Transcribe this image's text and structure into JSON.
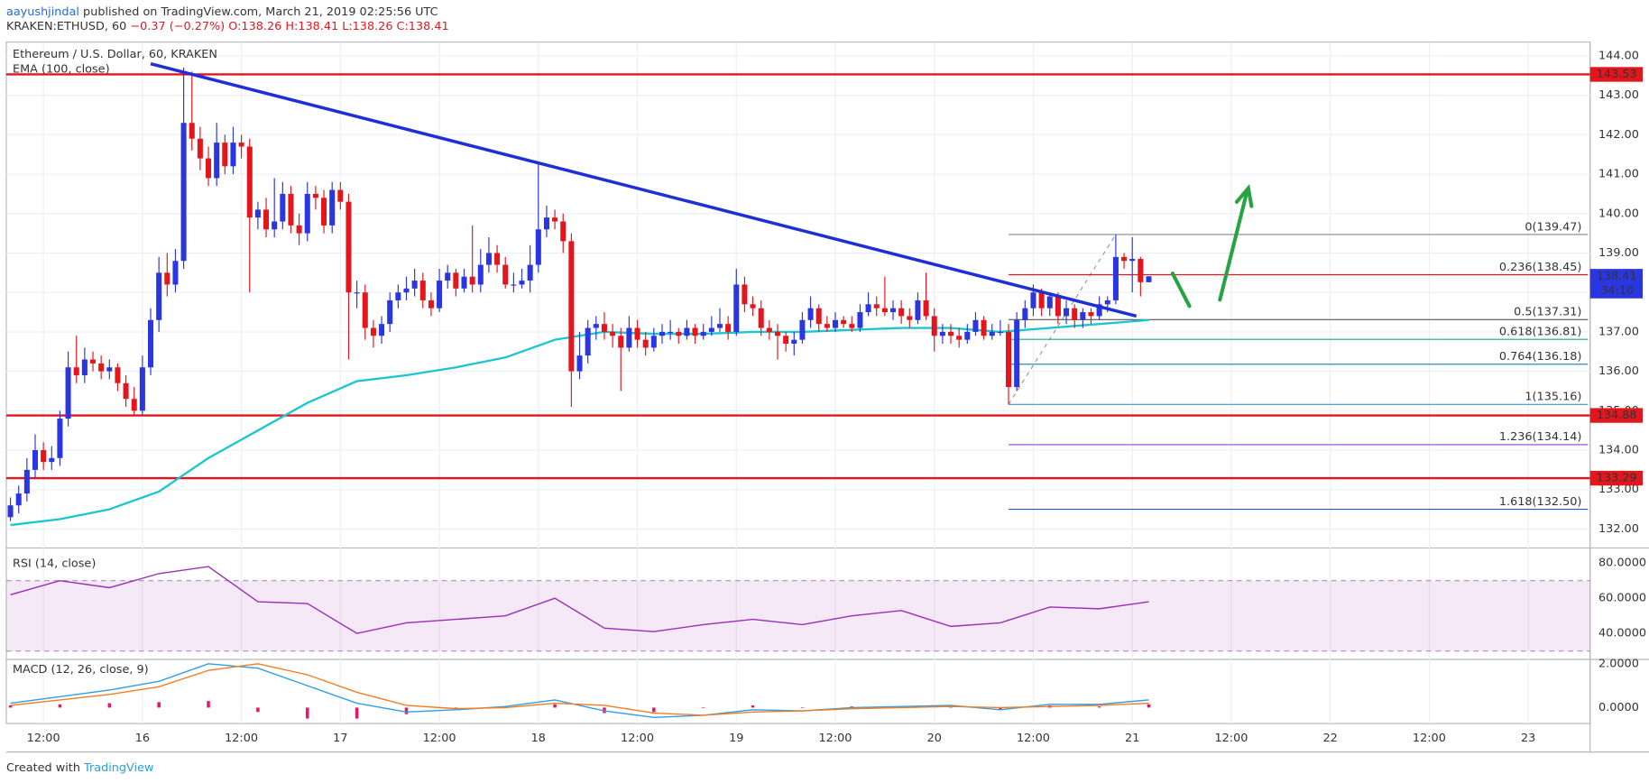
{
  "chart_data": {
    "type": "candlestick",
    "publisher": "aayushjindal",
    "published": "published on TradingView.com, March 21, 2019 02:25:56 UTC",
    "symbol": "KRAKEN:ETHUSD, 60",
    "change": "−0.37 (−0.27%)",
    "ohlc": "O:138.26 H:138.41 L:138.26 C:138.41",
    "title": "Ethereum / U.S. Dollar, 60, KRAKEN",
    "ema_label": "EMA (100, close)",
    "rsi_label": "RSI (14, close)",
    "macd_label": "MACD (12, 26, close, 9)",
    "footer": "Created with",
    "footer_brand": "TradingView",
    "up_color": "#2a36e0",
    "down_color": "#e3161d",
    "ema_color": "#1cc6d0",
    "grid": true,
    "xlim": [
      -0.5,
      191.5
    ],
    "xticks": [
      {
        "value": 4,
        "label": "12:00"
      },
      {
        "value": 16,
        "label": "16"
      },
      {
        "value": 28,
        "label": "12:00"
      },
      {
        "value": 40,
        "label": "17"
      },
      {
        "value": 52,
        "label": "12:00"
      },
      {
        "value": 64,
        "label": "18"
      },
      {
        "value": 76,
        "label": "12:00"
      },
      {
        "value": 88,
        "label": "19"
      },
      {
        "value": 100,
        "label": "12:00"
      },
      {
        "value": 112,
        "label": "20"
      },
      {
        "value": 124,
        "label": "12:00"
      },
      {
        "value": 136,
        "label": "21"
      },
      {
        "value": 148,
        "label": "12:00"
      },
      {
        "value": 160,
        "label": "22"
      },
      {
        "value": 172,
        "label": "12:00"
      },
      {
        "value": 184,
        "label": "23"
      }
    ],
    "ylim": [
      131.52,
      144.35
    ],
    "yticks": [
      {
        "value": 132,
        "label": "132.00"
      },
      {
        "value": 133,
        "label": "133.00"
      },
      {
        "value": 134,
        "label": "134.00"
      },
      {
        "value": 135,
        "label": "135.00"
      },
      {
        "value": 136,
        "label": "136.00"
      },
      {
        "value": 137,
        "label": "137.00"
      },
      {
        "value": 138,
        "label": "138.00"
      },
      {
        "value": 139,
        "label": "139.00"
      },
      {
        "value": 140,
        "label": "140.00"
      },
      {
        "value": 141,
        "label": "141.00"
      },
      {
        "value": 142,
        "label": "142.00"
      },
      {
        "value": 143,
        "label": "143.00"
      },
      {
        "value": 144,
        "label": "144.00"
      }
    ],
    "candles": [
      [
        132.3,
        132.8,
        132.2,
        132.6
      ],
      [
        132.6,
        133.1,
        132.4,
        132.9
      ],
      [
        132.9,
        133.8,
        132.7,
        133.5
      ],
      [
        133.5,
        134.4,
        133.3,
        134.0
      ],
      [
        134.0,
        134.2,
        133.5,
        133.7
      ],
      [
        133.7,
        134.1,
        133.5,
        133.8
      ],
      [
        133.8,
        135.0,
        133.6,
        134.8
      ],
      [
        134.8,
        136.5,
        134.6,
        136.1
      ],
      [
        136.1,
        136.9,
        135.7,
        135.9
      ],
      [
        135.9,
        136.6,
        135.7,
        136.3
      ],
      [
        136.3,
        136.5,
        136.0,
        136.2
      ],
      [
        136.2,
        136.4,
        135.8,
        136.0
      ],
      [
        136.0,
        136.3,
        135.8,
        136.1
      ],
      [
        136.1,
        136.2,
        135.5,
        135.7
      ],
      [
        135.7,
        135.9,
        135.1,
        135.3
      ],
      [
        135.3,
        135.6,
        134.9,
        135.0
      ],
      [
        135.0,
        136.4,
        134.9,
        136.1
      ],
      [
        136.1,
        137.6,
        135.9,
        137.3
      ],
      [
        137.3,
        138.9,
        137.0,
        138.5
      ],
      [
        138.5,
        139.0,
        137.9,
        138.2
      ],
      [
        138.2,
        139.1,
        138.0,
        138.8
      ],
      [
        138.8,
        143.7,
        138.6,
        142.3
      ],
      [
        142.3,
        143.6,
        141.6,
        141.9
      ],
      [
        141.9,
        142.2,
        141.1,
        141.4
      ],
      [
        141.4,
        141.7,
        140.7,
        140.9
      ],
      [
        140.9,
        142.3,
        140.7,
        141.8
      ],
      [
        141.8,
        142.0,
        141.0,
        141.2
      ],
      [
        141.2,
        142.2,
        141.0,
        141.8
      ],
      [
        141.8,
        142.0,
        141.4,
        141.7
      ],
      [
        141.7,
        141.9,
        138.0,
        139.9
      ],
      [
        139.9,
        140.3,
        139.6,
        140.1
      ],
      [
        140.1,
        140.4,
        139.4,
        139.6
      ],
      [
        139.6,
        140.9,
        139.4,
        139.8
      ],
      [
        139.8,
        140.8,
        139.6,
        140.5
      ],
      [
        140.5,
        140.7,
        139.5,
        139.7
      ],
      [
        139.7,
        140.0,
        139.2,
        139.5
      ],
      [
        139.5,
        140.8,
        139.3,
        140.5
      ],
      [
        140.5,
        140.7,
        140.1,
        140.4
      ],
      [
        140.4,
        140.6,
        139.5,
        139.7
      ],
      [
        139.7,
        140.8,
        139.5,
        140.6
      ],
      [
        140.6,
        140.8,
        140.1,
        140.3
      ],
      [
        140.3,
        140.5,
        136.3,
        138.0
      ],
      [
        138.0,
        138.3,
        137.6,
        138.0
      ],
      [
        138.0,
        138.2,
        136.8,
        137.1
      ],
      [
        137.1,
        137.3,
        136.6,
        136.9
      ],
      [
        136.9,
        137.4,
        136.7,
        137.2
      ],
      [
        137.2,
        138.0,
        137.0,
        137.8
      ],
      [
        137.8,
        138.2,
        137.6,
        138.0
      ],
      [
        138.0,
        138.4,
        137.8,
        138.1
      ],
      [
        138.1,
        138.6,
        137.9,
        138.3
      ],
      [
        138.3,
        138.5,
        137.6,
        137.8
      ],
      [
        137.8,
        138.0,
        137.4,
        137.6
      ],
      [
        137.6,
        138.6,
        137.5,
        138.3
      ],
      [
        138.3,
        138.7,
        138.1,
        138.5
      ],
      [
        138.5,
        138.6,
        137.9,
        138.1
      ],
      [
        138.1,
        138.6,
        138.0,
        138.4
      ],
      [
        138.4,
        139.7,
        138.0,
        138.2
      ],
      [
        138.2,
        139.1,
        138.0,
        138.7
      ],
      [
        138.7,
        139.4,
        138.5,
        139.0
      ],
      [
        139.0,
        139.2,
        138.5,
        138.7
      ],
      [
        138.7,
        138.9,
        138.1,
        138.2
      ],
      [
        138.2,
        138.5,
        138.0,
        138.2
      ],
      [
        138.2,
        138.6,
        138.1,
        138.3
      ],
      [
        138.3,
        139.2,
        138.0,
        138.7
      ],
      [
        138.7,
        141.3,
        138.5,
        139.6
      ],
      [
        139.6,
        140.2,
        139.4,
        139.9
      ],
      [
        139.9,
        140.1,
        139.6,
        139.8
      ],
      [
        139.8,
        140.0,
        139.0,
        139.3
      ],
      [
        139.3,
        139.5,
        135.1,
        136.0
      ],
      [
        136.0,
        137.0,
        135.8,
        136.4
      ],
      [
        136.4,
        137.3,
        136.2,
        137.1
      ],
      [
        137.1,
        137.4,
        136.8,
        137.2
      ],
      [
        137.2,
        137.5,
        136.8,
        137.0
      ],
      [
        137.0,
        137.2,
        136.6,
        136.9
      ],
      [
        136.9,
        137.1,
        135.5,
        136.6
      ],
      [
        136.6,
        137.4,
        136.5,
        137.1
      ],
      [
        137.1,
        137.3,
        136.6,
        136.8
      ],
      [
        136.8,
        137.0,
        136.4,
        136.6
      ],
      [
        136.6,
        137.1,
        136.5,
        136.9
      ],
      [
        136.9,
        137.2,
        136.7,
        137.0
      ],
      [
        137.0,
        137.3,
        136.8,
        137.0
      ],
      [
        137.0,
        137.1,
        136.7,
        136.9
      ],
      [
        136.9,
        137.3,
        136.8,
        137.1
      ],
      [
        137.1,
        137.2,
        136.7,
        136.9
      ],
      [
        136.9,
        137.2,
        136.8,
        137.0
      ],
      [
        137.0,
        137.4,
        136.9,
        137.1
      ],
      [
        137.1,
        137.6,
        137.0,
        137.2
      ],
      [
        137.2,
        137.4,
        136.8,
        137.0
      ],
      [
        137.0,
        138.6,
        136.9,
        138.2
      ],
      [
        138.2,
        138.4,
        137.5,
        137.7
      ],
      [
        137.7,
        137.9,
        137.4,
        137.6
      ],
      [
        137.6,
        137.8,
        136.9,
        137.1
      ],
      [
        137.1,
        137.3,
        136.8,
        137.0
      ],
      [
        137.0,
        137.2,
        136.3,
        136.9
      ],
      [
        136.9,
        137.0,
        136.5,
        136.7
      ],
      [
        136.7,
        137.0,
        136.4,
        136.8
      ],
      [
        136.8,
        137.5,
        136.7,
        137.3
      ],
      [
        137.3,
        137.9,
        137.1,
        137.6
      ],
      [
        137.6,
        137.7,
        137.0,
        137.2
      ],
      [
        137.2,
        137.4,
        137.0,
        137.1
      ],
      [
        137.1,
        137.5,
        137.0,
        137.3
      ],
      [
        137.3,
        137.4,
        137.1,
        137.2
      ],
      [
        137.2,
        137.4,
        137.0,
        137.1
      ],
      [
        137.1,
        137.7,
        137.0,
        137.5
      ],
      [
        137.5,
        138.0,
        137.4,
        137.7
      ],
      [
        137.7,
        137.9,
        137.4,
        137.6
      ],
      [
        137.6,
        138.4,
        137.4,
        137.5
      ],
      [
        137.5,
        137.8,
        137.3,
        137.6
      ],
      [
        137.6,
        137.8,
        137.2,
        137.4
      ],
      [
        137.4,
        137.6,
        137.1,
        137.3
      ],
      [
        137.3,
        138.0,
        137.2,
        137.8
      ],
      [
        137.8,
        138.5,
        137.3,
        137.4
      ],
      [
        137.4,
        137.6,
        136.5,
        136.9
      ],
      [
        136.9,
        137.2,
        136.7,
        137.0
      ],
      [
        137.0,
        137.2,
        136.7,
        136.9
      ],
      [
        136.9,
        137.1,
        136.6,
        136.8
      ],
      [
        136.8,
        137.2,
        136.7,
        137.0
      ],
      [
        137.0,
        137.5,
        136.9,
        137.3
      ],
      [
        137.3,
        137.4,
        136.8,
        136.9
      ],
      [
        136.9,
        137.2,
        136.8,
        137.0
      ],
      [
        137.0,
        137.3,
        136.9,
        137.0
      ],
      [
        137.0,
        137.2,
        135.16,
        135.6
      ],
      [
        135.6,
        137.5,
        135.5,
        137.3
      ],
      [
        137.3,
        137.8,
        137.1,
        137.6
      ],
      [
        137.6,
        138.2,
        137.4,
        138.0
      ],
      [
        138.0,
        138.1,
        137.4,
        137.6
      ],
      [
        137.6,
        138.0,
        137.4,
        137.9
      ],
      [
        137.9,
        138.0,
        137.2,
        137.4
      ],
      [
        137.4,
        137.8,
        137.2,
        137.6
      ],
      [
        137.6,
        137.7,
        137.1,
        137.3
      ],
      [
        137.3,
        137.6,
        137.1,
        137.5
      ],
      [
        137.5,
        137.6,
        137.2,
        137.4
      ],
      [
        137.4,
        137.9,
        137.3,
        137.7
      ],
      [
        137.7,
        137.9,
        137.5,
        137.8
      ],
      [
        137.8,
        139.47,
        137.7,
        138.9
      ],
      [
        138.9,
        139.0,
        138.6,
        138.8
      ],
      [
        138.8,
        139.4,
        138.0,
        138.85
      ],
      [
        138.85,
        138.9,
        137.9,
        138.26
      ],
      [
        138.26,
        138.41,
        138.26,
        138.41
      ]
    ],
    "ema": {
      "x": [
        0,
        6,
        12,
        18,
        24,
        30,
        36,
        42,
        48,
        54,
        60,
        66,
        72,
        78,
        84,
        90,
        96,
        102,
        108,
        114,
        120,
        126,
        132,
        138
      ],
      "values": [
        132.1,
        132.25,
        132.5,
        132.95,
        133.8,
        134.5,
        135.2,
        135.75,
        135.9,
        136.1,
        136.35,
        136.8,
        137.0,
        136.95,
        136.95,
        137.0,
        137.0,
        137.05,
        137.1,
        137.1,
        137.0,
        137.1,
        137.2,
        137.3
      ]
    },
    "hlines": [
      {
        "value": 143.53,
        "label": "143.53"
      },
      {
        "value": 134.88,
        "label": "134.88"
      },
      {
        "value": 133.29,
        "label": "133.29"
      }
    ],
    "hline_color": "#e3161d",
    "price": {
      "value": 138.41,
      "label": "138.41"
    },
    "countdown": "34:10",
    "trendline": {
      "x": [
        17,
        136.5
      ],
      "values": [
        143.8,
        137.4
      ],
      "color": "#1f2fd6"
    },
    "fib_x": [
      121,
      134
    ],
    "fib": [
      {
        "value": 139.47,
        "label": "0(139.47)",
        "color": "#888888"
      },
      {
        "value": 138.45,
        "label": "0.236(138.45)",
        "color": "#e3161d"
      },
      {
        "value": 137.31,
        "label": "0.5(137.31)",
        "color": "#555555"
      },
      {
        "value": 136.81,
        "label": "0.618(136.81)",
        "color": "#1aab6d"
      },
      {
        "value": 136.18,
        "label": "0.764(136.18)",
        "color": "#2a8fb8"
      },
      {
        "value": 135.16,
        "label": "1(135.16)",
        "color": "#3a8fe0"
      },
      {
        "value": 134.14,
        "label": "1.236(134.14)",
        "color": "#9b3fc9"
      },
      {
        "value": 132.5,
        "label": "1.618(132.50)",
        "color": "#2a55c8"
      }
    ],
    "rsi": {
      "x": [
        0,
        6,
        12,
        18,
        24,
        30,
        36,
        42,
        48,
        54,
        60,
        66,
        72,
        78,
        84,
        90,
        96,
        102,
        108,
        114,
        120,
        126,
        132,
        138
      ],
      "values": [
        62,
        70,
        66,
        74,
        78,
        58,
        57,
        40,
        46,
        48,
        50,
        60,
        43,
        41,
        45,
        48,
        45,
        50,
        53,
        44,
        46,
        55,
        54,
        58
      ],
      "color": "#9a2fb5",
      "ylim": [
        25.2,
        88.6
      ],
      "band": [
        30,
        70
      ],
      "yticks": [
        {
          "value": 40,
          "label": "40.0000"
        },
        {
          "value": 60,
          "label": "60.0000"
        },
        {
          "value": 80,
          "label": "80.0000"
        }
      ]
    },
    "macd": {
      "x": [
        0,
        6,
        12,
        18,
        24,
        30,
        36,
        42,
        48,
        54,
        60,
        66,
        72,
        78,
        84,
        90,
        96,
        102,
        108,
        114,
        120,
        126,
        132,
        138
      ],
      "line": [
        0.2,
        0.5,
        0.8,
        1.2,
        2.0,
        1.8,
        1.0,
        0.2,
        -0.2,
        -0.1,
        0.05,
        0.35,
        -0.15,
        -0.45,
        -0.35,
        -0.1,
        -0.15,
        0.0,
        0.05,
        0.1,
        -0.1,
        0.15,
        0.15,
        0.35
      ],
      "signal": [
        0.1,
        0.35,
        0.6,
        0.95,
        1.7,
        2.0,
        1.5,
        0.7,
        0.1,
        -0.05,
        0.0,
        0.2,
        0.1,
        -0.25,
        -0.35,
        -0.2,
        -0.15,
        -0.05,
        0.0,
        0.05,
        0.0,
        0.05,
        0.1,
        0.2
      ],
      "hist": [
        0.1,
        0.15,
        0.2,
        0.25,
        0.3,
        -0.2,
        -0.5,
        -0.5,
        -0.3,
        -0.05,
        0.05,
        0.15,
        -0.25,
        -0.2,
        0,
        0.1,
        0,
        0.05,
        0.05,
        0.05,
        -0.1,
        0.1,
        0.05,
        0.15
      ],
      "line_color": "#2f9ee8",
      "signal_color": "#f57c1f",
      "hist_color": "#e8156b",
      "ylim": [
        -0.73,
        2.2
      ],
      "yticks": [
        {
          "value": 0,
          "label": "0.0000"
        },
        {
          "value": 2,
          "label": "2.0000"
        }
      ]
    }
  }
}
